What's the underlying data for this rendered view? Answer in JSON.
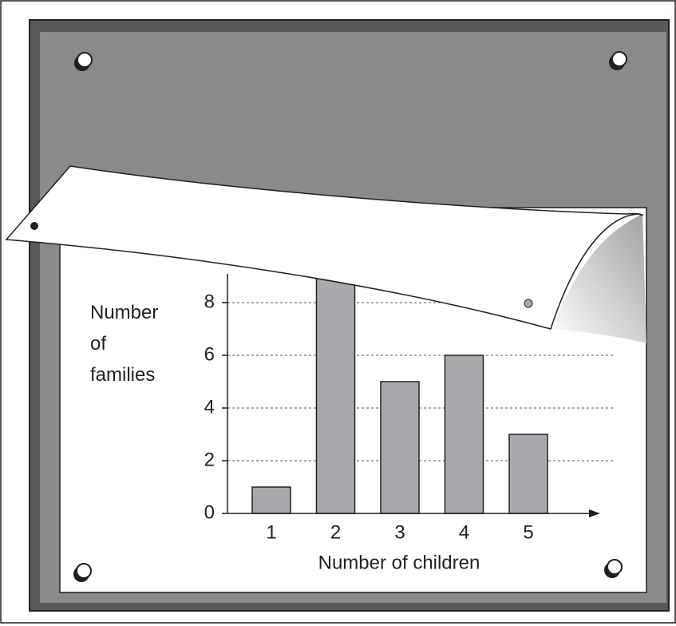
{
  "chart_data": {
    "type": "bar",
    "x_label": "Number of children",
    "y_label": "Number of families",
    "categories": [
      "1",
      "2",
      "3",
      "4",
      "5"
    ],
    "values": [
      1,
      9,
      5,
      6,
      3
    ],
    "color": "#a7a9ac",
    "ylim": [
      0,
      10
    ],
    "yticks": [
      0,
      2,
      4,
      6,
      8
    ],
    "grid": true
  }
}
